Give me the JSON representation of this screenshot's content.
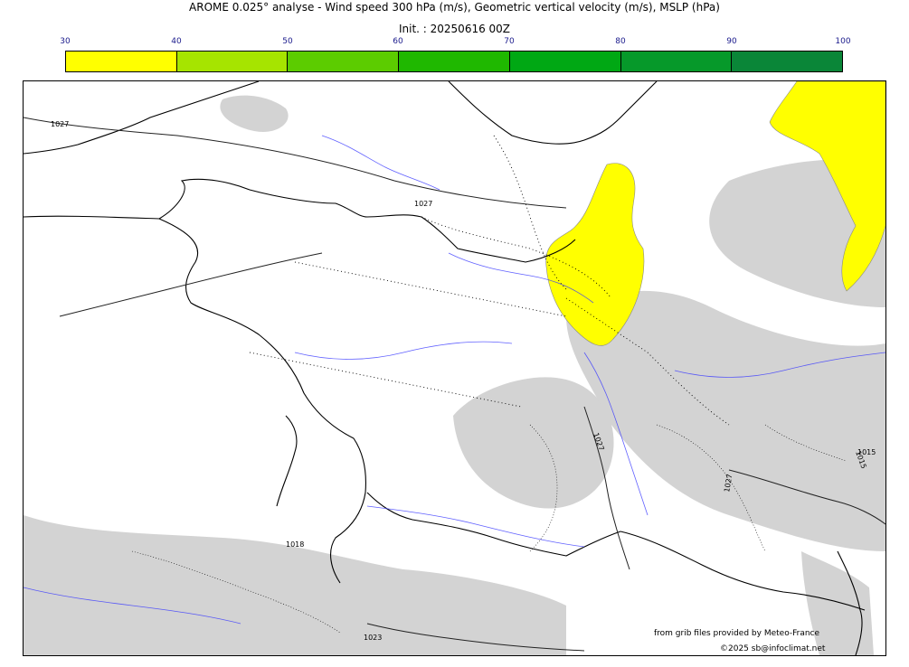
{
  "header": {
    "title": "AROME 0.025° analyse - Wind speed 300 hPa (m/s), Geometric vertical velocity (m/s), MSLP (hPa)",
    "init": "Init. : 20250616 00Z"
  },
  "colorbar": {
    "ticks": [
      "30",
      "40",
      "50",
      "60",
      "70",
      "80",
      "90",
      "100"
    ],
    "colors": [
      "#ffff00",
      "#a6e400",
      "#5ccc00",
      "#1fb800",
      "#00a814",
      "#06992a",
      "#0a8638",
      "#0b7350"
    ]
  },
  "map": {
    "isobar_labels": [
      "1027",
      "1027",
      "1027",
      "1027",
      "1015",
      "1015",
      "1018",
      "1023"
    ],
    "wind_fill_color": "#ffff00",
    "vertical_velocity_fill_color": "#d3d3d3",
    "coast_color": "#000000",
    "river_color": "#3a3aff"
  },
  "credits": {
    "source": "from grib files provided by Meteo-France",
    "copyright": "©2025 sb@infoclimat.net"
  }
}
